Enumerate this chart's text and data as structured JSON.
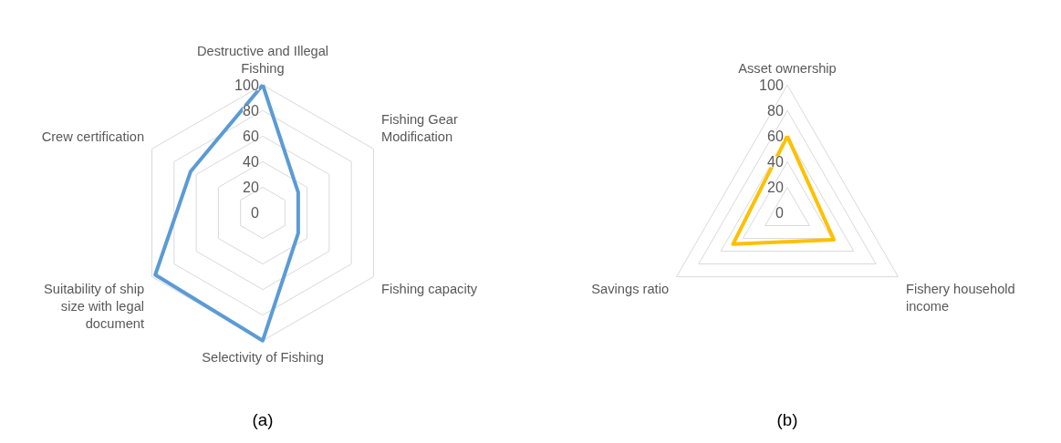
{
  "chart_data": [
    {
      "type": "radar",
      "categories": [
        "Destructive and Illegal Fishing",
        "Fishing Gear Modification",
        "Fishing capacity",
        "Selectivity of Fishing",
        "Suitability of ship size with legal document",
        "Crew certification"
      ],
      "series": [
        {
          "color": "#5b9bd5",
          "values": [
            100,
            32,
            32,
            100,
            97,
            65
          ]
        }
      ],
      "ylim": [
        0,
        100
      ],
      "yticks": [
        0,
        20,
        40,
        60,
        80,
        100
      ],
      "grid": true,
      "annotations": [
        "(a)"
      ]
    },
    {
      "type": "radar",
      "categories": [
        "Asset ownership",
        "Fishery household income",
        "Savings ratio"
      ],
      "series": [
        {
          "color": "#ffc000",
          "values": [
            60,
            42,
            49
          ]
        }
      ],
      "ylim": [
        0,
        100
      ],
      "yticks": [
        0,
        20,
        40,
        60,
        80,
        100
      ],
      "grid": true,
      "annotations": [
        "(b)"
      ]
    }
  ]
}
